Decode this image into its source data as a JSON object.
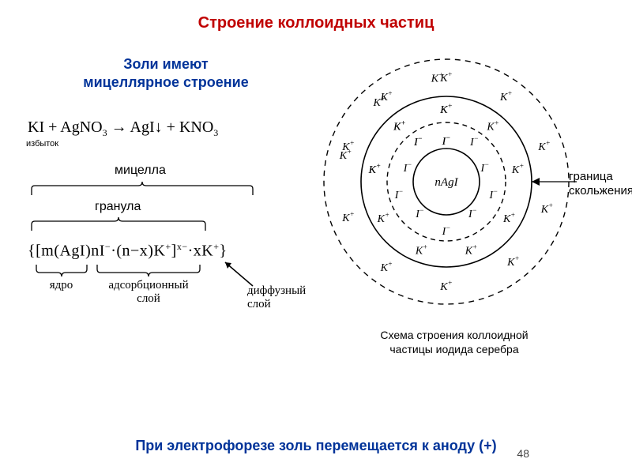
{
  "title": "Строение коллоидных частиц",
  "subtitle_line1": "Золи имеют",
  "subtitle_line2": "мицеллярное строение",
  "equation": {
    "lhs_salt": "KI",
    "excess_note": "избыток",
    "plus1": " + ",
    "reagent": "AgNO",
    "reagent_sub": "3",
    "arrow": " → ",
    "prod1": "AgI",
    "down": "↓",
    "plus2": " + ",
    "prod2": "KNO",
    "prod2_sub": "3"
  },
  "braces": {
    "micelle": "мицелла",
    "granule": "гранула"
  },
  "formula": {
    "open": "{[m(AgI)nI",
    "sup_minus": "−",
    "mid1": "·(n−x)K",
    "sup_plus": "+",
    "mid2": "]",
    "charge": "x−",
    "tail": "·xK",
    "tail_sup": "+",
    "close": "}"
  },
  "under_labels": {
    "core": "ядро",
    "adsorb": "адсорбционный",
    "adsorb2": "слой",
    "diffuse": "диффузный",
    "diffuse2": "слой"
  },
  "diagram": {
    "K": "K",
    "I": "I",
    "plus": "+",
    "minus": "−",
    "core": "nAgI",
    "caption1": "Схема строения коллоидной",
    "caption2": "частицы иодида серебра",
    "boundary1": "граница",
    "boundary2": "скольжения"
  },
  "footer": "При электрофорезе золь перемещается к аноду (+)",
  "pagenum": "48",
  "colors": {
    "title": "#c00000",
    "subtitle": "#003399",
    "line": "#000000",
    "bg": "#ffffff"
  }
}
